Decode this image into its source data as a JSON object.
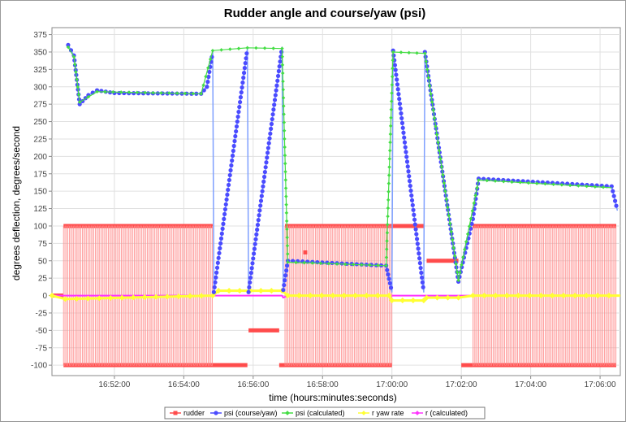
{
  "chart_data": {
    "type": "line",
    "title": "Rudder angle and course/yaw (psi)",
    "xlabel": "time (hours:minutes:seconds)",
    "ylabel": "degrees deflection, degrees/second",
    "ylim": [
      -115,
      385
    ],
    "yticks": [
      375,
      350,
      325,
      300,
      275,
      250,
      225,
      200,
      175,
      150,
      125,
      100,
      75,
      50,
      25,
      0,
      -25,
      -50,
      -75,
      -100
    ],
    "xlim": [
      "16:50:12",
      "17:06:35"
    ],
    "xticks": [
      "16:52:00",
      "16:54:00",
      "16:56:00",
      "16:58:00",
      "17:00:00",
      "17:02:00",
      "17:04:00",
      "17:06:00"
    ],
    "grid": true,
    "legend_position": "bottom",
    "colors": {
      "rudder": "#ff4c4c",
      "psi": "#4b4bff",
      "psi_calculated": "#44dd44",
      "yaw_rate": "#ffff33",
      "r_calculated": "#ff33ff"
    },
    "series": [
      {
        "name": "rudder",
        "segments": [
          {
            "kind": "constant",
            "x": [
              "16:50:12",
              "16:50:32"
            ],
            "value": 0
          },
          {
            "kind": "oscillating",
            "x": [
              "16:50:32",
              "16:54:50"
            ],
            "values": [
              100,
              -100
            ]
          },
          {
            "kind": "constant",
            "x": [
              "16:54:50",
              "16:55:50"
            ],
            "value": -100
          },
          {
            "kind": "constant",
            "x": [
              "16:55:52",
              "16:56:45"
            ],
            "value": -50
          },
          {
            "kind": "constant",
            "x": [
              "16:56:45",
              "16:56:55"
            ],
            "value": -100
          },
          {
            "kind": "oscillating",
            "x": [
              "16:56:55",
              "17:00:00"
            ],
            "values": [
              100,
              -100
            ]
          },
          {
            "kind": "constant",
            "x": [
              "17:00:00",
              "17:00:55"
            ],
            "value": 100
          },
          {
            "kind": "constant",
            "x": [
              "17:01:00",
              "17:01:55"
            ],
            "value": 50
          },
          {
            "kind": "constant",
            "x": [
              "17:02:00",
              "17:02:20"
            ],
            "value": -100
          },
          {
            "kind": "oscillating",
            "x": [
              "17:02:20",
              "17:06:28"
            ],
            "values": [
              100,
              -100
            ]
          }
        ],
        "points": [
          {
            "x": "16:57:30",
            "y": 62
          }
        ]
      },
      {
        "name": "psi (course/yaw)",
        "points": [
          {
            "x": "16:50:40",
            "y": 360
          },
          {
            "x": "16:50:50",
            "y": 345
          },
          {
            "x": "16:51:00",
            "y": 275
          },
          {
            "x": "16:51:15",
            "y": 288
          },
          {
            "x": "16:51:30",
            "y": 295
          },
          {
            "x": "16:52:00",
            "y": 291
          },
          {
            "x": "16:54:30",
            "y": 290
          },
          {
            "x": "16:54:40",
            "y": 300
          },
          {
            "x": "16:54:50",
            "y": 350
          },
          {
            "x": "16:54:52",
            "y": 5
          },
          {
            "x": "16:55:50",
            "y": 355
          },
          {
            "x": "16:55:52",
            "y": 5
          },
          {
            "x": "16:56:50",
            "y": 357
          },
          {
            "x": "16:56:52",
            "y": 8
          },
          {
            "x": "16:57:00",
            "y": 50
          },
          {
            "x": "16:59:50",
            "y": 43
          },
          {
            "x": "17:00:00",
            "y": 5
          },
          {
            "x": "17:00:02",
            "y": 352
          },
          {
            "x": "17:00:55",
            "y": 5
          },
          {
            "x": "17:00:57",
            "y": 350
          },
          {
            "x": "17:01:55",
            "y": 20
          },
          {
            "x": "17:02:20",
            "y": 110
          },
          {
            "x": "17:02:30",
            "y": 168
          },
          {
            "x": "17:06:20",
            "y": 157
          },
          {
            "x": "17:06:30",
            "y": 122
          }
        ]
      },
      {
        "name": "psi (calculated)",
        "points": [
          {
            "x": "16:50:40",
            "y": 357
          },
          {
            "x": "16:50:50",
            "y": 343
          },
          {
            "x": "16:51:00",
            "y": 278
          },
          {
            "x": "16:51:30",
            "y": 293
          },
          {
            "x": "16:54:30",
            "y": 290
          },
          {
            "x": "16:54:50",
            "y": 352
          },
          {
            "x": "16:55:50",
            "y": 356
          },
          {
            "x": "16:56:50",
            "y": 355
          },
          {
            "x": "16:57:00",
            "y": 48
          },
          {
            "x": "16:59:50",
            "y": 43
          },
          {
            "x": "17:00:02",
            "y": 350
          },
          {
            "x": "17:00:57",
            "y": 348
          },
          {
            "x": "17:01:55",
            "y": 22
          },
          {
            "x": "17:02:30",
            "y": 166
          },
          {
            "x": "17:06:20",
            "y": 155
          }
        ]
      },
      {
        "name": "r yaw rate",
        "points": [
          {
            "x": "16:50:12",
            "y": 0
          },
          {
            "x": "16:50:35",
            "y": -5
          },
          {
            "x": "16:54:50",
            "y": 0
          },
          {
            "x": "16:55:00",
            "y": 7
          },
          {
            "x": "16:56:50",
            "y": 7
          },
          {
            "x": "16:57:00",
            "y": 0
          },
          {
            "x": "16:59:55",
            "y": 0
          },
          {
            "x": "17:00:00",
            "y": -7
          },
          {
            "x": "17:00:55",
            "y": -7
          },
          {
            "x": "17:01:00",
            "y": -3
          },
          {
            "x": "17:01:55",
            "y": -3
          },
          {
            "x": "17:02:20",
            "y": 0
          },
          {
            "x": "17:06:35",
            "y": 0
          }
        ]
      },
      {
        "name": "r (calculated)",
        "points": [
          {
            "x": "16:50:12",
            "y": 0
          },
          {
            "x": "16:56:50",
            "y": 0
          },
          {
            "x": "16:56:52",
            "y": -3
          },
          {
            "x": "16:57:00",
            "y": 0
          },
          {
            "x": "17:06:35",
            "y": 0
          }
        ]
      }
    ]
  }
}
